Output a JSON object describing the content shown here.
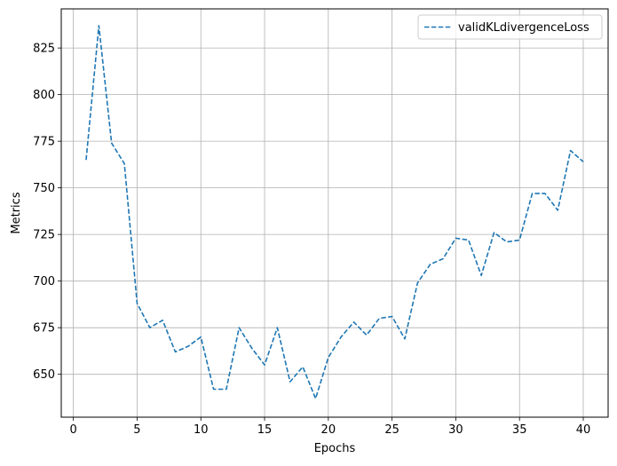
{
  "chart_data": {
    "type": "line",
    "xlabel": "Epochs",
    "ylabel": "Metrics",
    "xlim": [
      -0.95,
      41.95
    ],
    "ylim": [
      627,
      846
    ],
    "xticks": [
      0,
      5,
      10,
      15,
      20,
      25,
      30,
      35,
      40
    ],
    "yticks": [
      650,
      675,
      700,
      725,
      750,
      775,
      800,
      825
    ],
    "grid": true,
    "legend_position": "top-right",
    "series": [
      {
        "name": "validKLdivergenceLoss",
        "color": "#1f77b4",
        "style": "dashed",
        "x": [
          1,
          2,
          3,
          4,
          5,
          6,
          7,
          8,
          9,
          10,
          11,
          12,
          13,
          14,
          15,
          16,
          17,
          18,
          19,
          20,
          21,
          22,
          23,
          24,
          25,
          26,
          27,
          28,
          29,
          30,
          31,
          32,
          33,
          34,
          35,
          36,
          37,
          38,
          39,
          40
        ],
        "y": [
          765,
          837,
          774,
          763,
          688,
          675,
          679,
          662,
          665,
          670,
          642,
          642,
          675,
          664,
          655,
          675,
          646,
          654,
          637,
          659,
          670,
          678,
          671,
          680,
          681,
          669,
          699,
          709,
          712,
          723,
          722,
          703,
          726,
          721,
          722,
          747,
          747,
          738,
          770,
          764
        ]
      }
    ]
  }
}
